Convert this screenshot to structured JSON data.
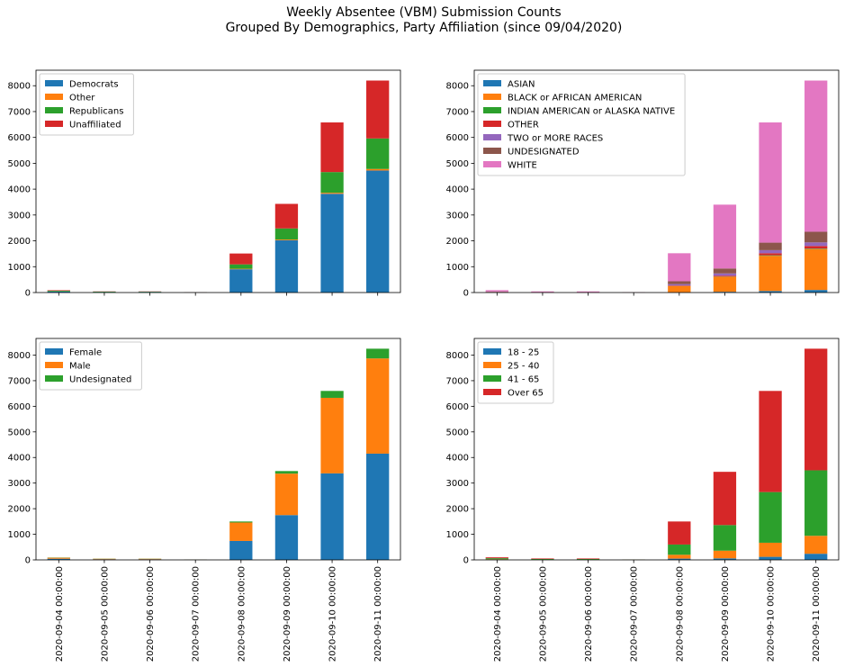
{
  "figure": {
    "title_line1": "Weekly Absentee (VBM) Submission Counts",
    "title_line2": "Grouped By Demographics, Party Affiliation (since 09/04/2020)"
  },
  "chart_data": [
    {
      "type": "bar",
      "stacked": true,
      "panel": "top-left",
      "title": "",
      "xlabel": "",
      "ylabel": "",
      "categories": [
        "2020-09-04 00:00:00",
        "2020-09-05 00:00:00",
        "2020-09-06 00:00:00",
        "2020-09-07 00:00:00",
        "2020-09-08 00:00:00",
        "2020-09-09 00:00:00",
        "2020-09-10 00:00:00",
        "2020-09-11 00:00:00"
      ],
      "show_x_tick_labels": false,
      "ylim": [
        0,
        8600
      ],
      "yticks": [
        0,
        1000,
        2000,
        3000,
        4000,
        5000,
        6000,
        7000,
        8000
      ],
      "legend": "upper-left",
      "grid": false,
      "series": [
        {
          "name": "Democrats",
          "color": "#1f77b4",
          "values": [
            40,
            20,
            25,
            5,
            900,
            2020,
            3820,
            4720
          ]
        },
        {
          "name": "Other",
          "color": "#ff7f0e",
          "values": [
            3,
            2,
            2,
            1,
            20,
            30,
            40,
            60
          ]
        },
        {
          "name": "Republicans",
          "color": "#2ca02c",
          "values": [
            30,
            15,
            10,
            4,
            170,
            430,
            800,
            1180
          ]
        },
        {
          "name": "Unaffiliated",
          "color": "#d62728",
          "values": [
            20,
            8,
            8,
            5,
            420,
            950,
            1920,
            2240
          ]
        }
      ]
    },
    {
      "type": "bar",
      "stacked": true,
      "panel": "top-right",
      "title": "",
      "xlabel": "",
      "ylabel": "",
      "categories": [
        "2020-09-04 00:00:00",
        "2020-09-05 00:00:00",
        "2020-09-06 00:00:00",
        "2020-09-07 00:00:00",
        "2020-09-08 00:00:00",
        "2020-09-09 00:00:00",
        "2020-09-10 00:00:00",
        "2020-09-11 00:00:00"
      ],
      "show_x_tick_labels": false,
      "ylim": [
        0,
        8600
      ],
      "yticks": [
        0,
        1000,
        2000,
        3000,
        4000,
        5000,
        6000,
        7000,
        8000
      ],
      "legend": "upper-left",
      "grid": false,
      "series": [
        {
          "name": "ASIAN",
          "color": "#1f77b4",
          "values": [
            2,
            1,
            1,
            0,
            10,
            30,
            60,
            100
          ]
        },
        {
          "name": "BLACK or AFRICAN AMERICAN",
          "color": "#ff7f0e",
          "values": [
            15,
            8,
            8,
            3,
            240,
            580,
            1360,
            1580
          ]
        },
        {
          "name": "INDIAN AMERICAN or ALASKA NATIVE",
          "color": "#2ca02c",
          "values": [
            1,
            0,
            0,
            0,
            5,
            10,
            20,
            20
          ]
        },
        {
          "name": "OTHER",
          "color": "#d62728",
          "values": [
            3,
            1,
            1,
            0,
            20,
            30,
            80,
            100
          ]
        },
        {
          "name": "TWO or MORE RACES",
          "color": "#9467bd",
          "values": [
            10,
            5,
            5,
            1,
            50,
            90,
            120,
            140
          ]
        },
        {
          "name": "UNDESIGNATED",
          "color": "#8c564b",
          "values": [
            10,
            5,
            5,
            2,
            110,
            190,
            290,
            410
          ]
        },
        {
          "name": "WHITE",
          "color": "#e377c2",
          "values": [
            52,
            25,
            25,
            9,
            1085,
            2470,
            4650,
            5850
          ]
        }
      ]
    },
    {
      "type": "bar",
      "stacked": true,
      "panel": "bottom-left",
      "title": "",
      "xlabel": "",
      "ylabel": "",
      "categories": [
        "2020-09-04 00:00:00",
        "2020-09-05 00:00:00",
        "2020-09-06 00:00:00",
        "2020-09-07 00:00:00",
        "2020-09-08 00:00:00",
        "2020-09-09 00:00:00",
        "2020-09-10 00:00:00",
        "2020-09-11 00:00:00"
      ],
      "show_x_tick_labels": true,
      "ylim": [
        0,
        8650
      ],
      "yticks": [
        0,
        1000,
        2000,
        3000,
        4000,
        5000,
        6000,
        7000,
        8000
      ],
      "legend": "upper-left",
      "grid": false,
      "series": [
        {
          "name": "Female",
          "color": "#1f77b4",
          "values": [
            45,
            25,
            25,
            6,
            740,
            1750,
            3380,
            4150
          ]
        },
        {
          "name": "Male",
          "color": "#ff7f0e",
          "values": [
            40,
            20,
            20,
            6,
            720,
            1620,
            2950,
            3720
          ]
        },
        {
          "name": "Undesignated",
          "color": "#2ca02c",
          "values": [
            8,
            5,
            5,
            3,
            40,
            100,
            270,
            380
          ]
        }
      ]
    },
    {
      "type": "bar",
      "stacked": true,
      "panel": "bottom-right",
      "title": "",
      "xlabel": "",
      "ylabel": "",
      "categories": [
        "2020-09-04 00:00:00",
        "2020-09-05 00:00:00",
        "2020-09-06 00:00:00",
        "2020-09-07 00:00:00",
        "2020-09-08 00:00:00",
        "2020-09-09 00:00:00",
        "2020-09-10 00:00:00",
        "2020-09-11 00:00:00"
      ],
      "show_x_tick_labels": true,
      "ylim": [
        0,
        8650
      ],
      "yticks": [
        0,
        1000,
        2000,
        3000,
        4000,
        5000,
        6000,
        7000,
        8000
      ],
      "legend": "upper-left",
      "grid": false,
      "series": [
        {
          "name": "18 - 25",
          "color": "#1f77b4",
          "values": [
            5,
            3,
            3,
            1,
            50,
            60,
            120,
            240
          ]
        },
        {
          "name": "25 - 40",
          "color": "#ff7f0e",
          "values": [
            20,
            12,
            12,
            4,
            150,
            300,
            550,
            700
          ]
        },
        {
          "name": "41 - 65",
          "color": "#2ca02c",
          "values": [
            40,
            20,
            20,
            8,
            400,
            1000,
            1980,
            2560
          ]
        },
        {
          "name": "Over 65",
          "color": "#d62728",
          "values": [
            35,
            20,
            20,
            2,
            900,
            2080,
            3950,
            4750
          ]
        }
      ]
    }
  ]
}
